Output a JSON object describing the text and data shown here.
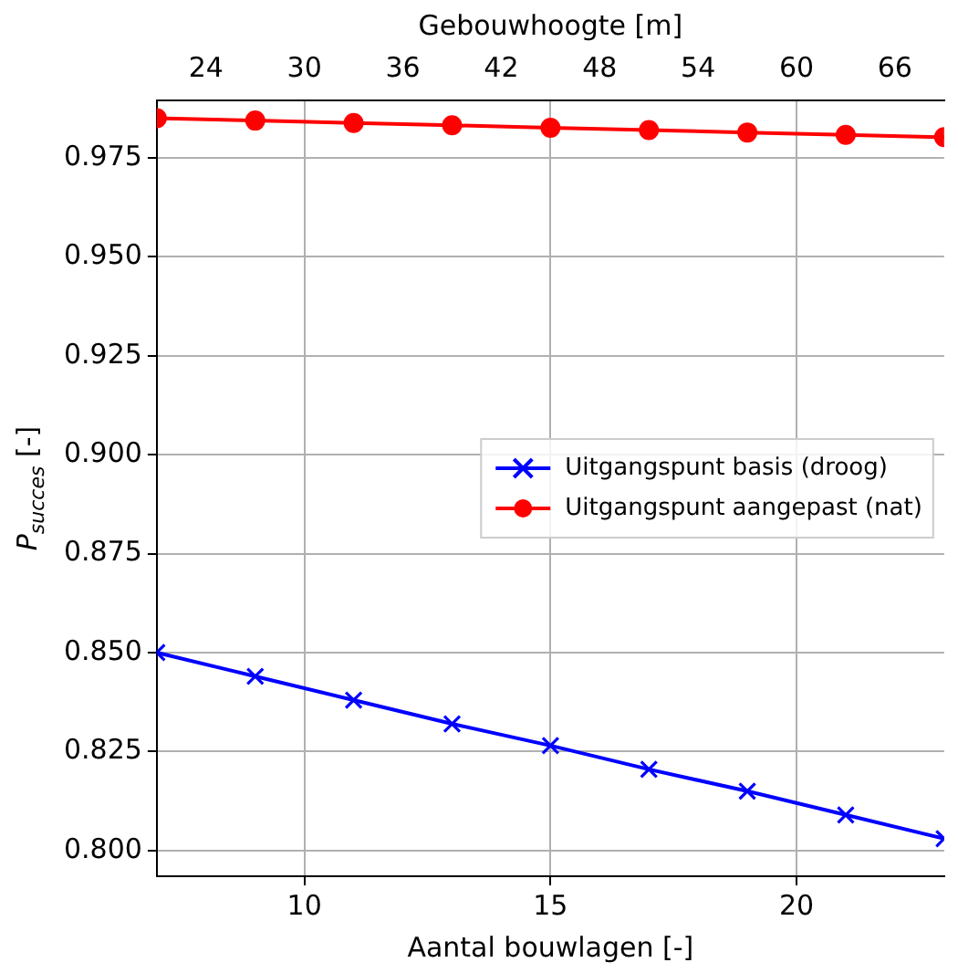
{
  "chart_data": {
    "type": "line",
    "xlabel": "Aantal bouwlagen [-]",
    "x2label": "Gebouwhoogte [m]",
    "ylabel": "P$_{succes}$ [-]",
    "x": [
      7,
      9,
      11,
      13,
      15,
      17,
      19,
      21,
      23
    ],
    "series": [
      {
        "name": "Uitgangspunt basis (droog)",
        "color": "#0000ff",
        "marker": "cross",
        "values": [
          0.85,
          0.844,
          0.838,
          0.832,
          0.8265,
          0.8205,
          0.815,
          0.809,
          0.803
        ]
      },
      {
        "name": "Uitgangspunt aangepast (nat)",
        "color": "#ff0000",
        "marker": "circle",
        "values": [
          0.985,
          0.9844,
          0.9838,
          0.9832,
          0.9826,
          0.982,
          0.9814,
          0.9808,
          0.9802
        ]
      }
    ],
    "xlim": [
      7,
      23
    ],
    "xticks": [
      10,
      15,
      20
    ],
    "x2lim": [
      21,
      69
    ],
    "x2ticks": [
      24,
      30,
      36,
      42,
      48,
      54,
      60,
      66
    ],
    "ylim": [
      0.7935,
      0.9895
    ],
    "yticks": [
      {
        "value": 0.8,
        "label": "0.800"
      },
      {
        "value": 0.825,
        "label": "0.825"
      },
      {
        "value": 0.85,
        "label": "0.850"
      },
      {
        "value": 0.875,
        "label": "0.875"
      },
      {
        "value": 0.9,
        "label": "0.900"
      },
      {
        "value": 0.925,
        "label": "0.925"
      },
      {
        "value": 0.95,
        "label": "0.950"
      },
      {
        "value": 0.975,
        "label": "0.975"
      }
    ],
    "grid": true,
    "legend": "center right",
    "line_style": "solid"
  }
}
